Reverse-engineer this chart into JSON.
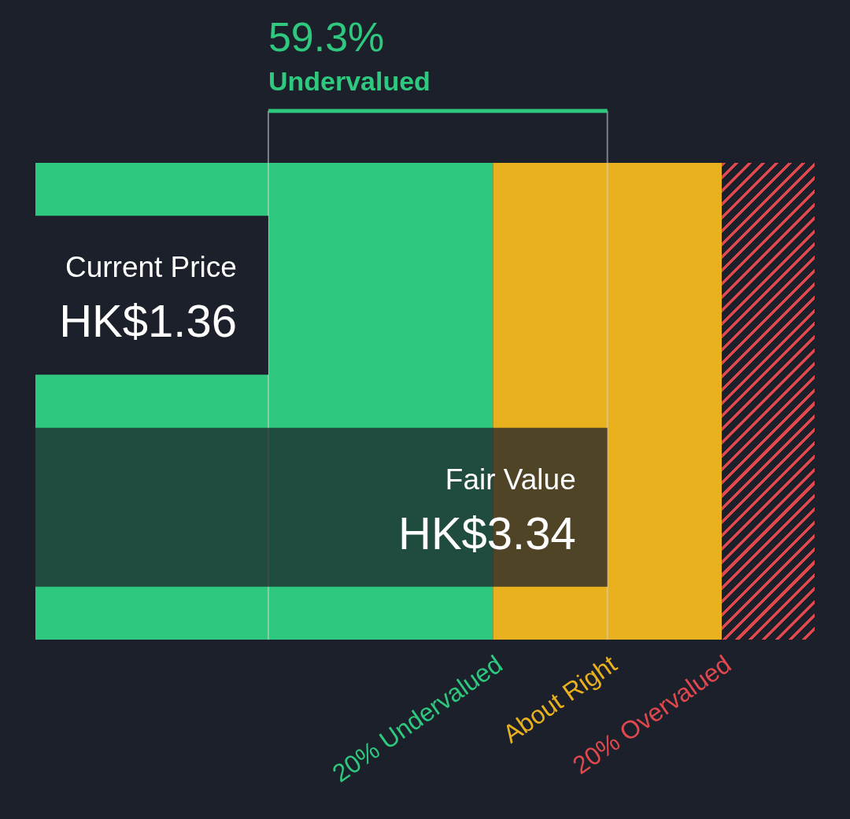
{
  "chart_data": {
    "type": "bar",
    "orientation": "horizontal",
    "categories": [
      "Current Price",
      "Fair Value"
    ],
    "values": [
      1.36,
      3.34
    ],
    "value_labels": [
      "HK$1.36",
      "HK$3.34"
    ],
    "colors": [
      "#1c202b",
      "#1c202b"
    ],
    "xlim": [
      0,
      4.55
    ],
    "tick_labels": false,
    "bands": [
      {
        "axis": "x",
        "from": 0,
        "to": 2.672,
        "label": "20% Undervalued",
        "color": "#2ec97e"
      },
      {
        "axis": "x",
        "from": 2.672,
        "to": 4.008,
        "label": "About Right",
        "color": "#e9b11e"
      },
      {
        "axis": "x",
        "from": 4.008,
        "to": 4.55,
        "label": "20% Overvalued",
        "color": "#e0484e"
      }
    ],
    "ref_lines": [
      {
        "axis": "x",
        "value": 1.36,
        "color": "#d0d0d0"
      },
      {
        "axis": "x",
        "value": 3.34,
        "color": "#d0d0d0"
      }
    ],
    "annotations": [
      "59.3%",
      "Undervalued"
    ]
  }
}
